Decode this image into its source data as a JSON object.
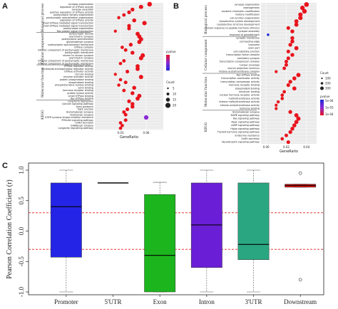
{
  "colors": {
    "panel_bg": "#ebebeb",
    "grid": "#ffffff",
    "dot_high": "#e8141d",
    "dot_mid": "#8a2ad6",
    "dot_low": "#1f2bd6",
    "threshold": "#e31a1c"
  },
  "chart_data": [
    {
      "panel": "A",
      "type": "scatter",
      "xlabel": "GeneRatio",
      "xticks": [
        "0.03",
        "0.06"
      ],
      "xlim": [
        0.0,
        0.08
      ],
      "legend": {
        "color_title": "pvalue",
        "size_title": "Count",
        "size_values": [
          "5",
          "10",
          "15",
          "20"
        ]
      },
      "groups": [
        {
          "name": "Biological process",
          "terms": [
            {
              "label": "synapse organization",
              "x": 0.064
            },
            {
              "label": "regulation of GTPase activity",
              "x": 0.054
            },
            {
              "label": "synapse assembly",
              "x": 0.044
            },
            {
              "label": "positive regulation of GTPase activity",
              "x": 0.04
            },
            {
              "label": "postsynaptic density organization",
              "x": 0.034
            },
            {
              "label": "postsynaptic specialization organization",
              "x": 0.028
            },
            {
              "label": "regulation of GTPase activity",
              "x": 0.046
            },
            {
              "label": "small GTPase mediated signal transduction",
              "x": 0.058
            },
            {
              "label": "small GTPase mediated signal transduction",
              "x": 0.04
            },
            {
              "label": "postsynapse organization",
              "x": 0.04
            },
            {
              "label": "Ras protein signal transduction",
              "x": 0.024
            }
          ]
        },
        {
          "name": "Cellular component",
          "terms": [
            {
              "label": "postsynaptic density",
              "x": 0.05
            },
            {
              "label": "asymmetric synapse",
              "x": 0.052
            },
            {
              "label": "postsynaptic specialization",
              "x": 0.054
            },
            {
              "label": "glutamatergic synapse",
              "x": 0.052
            },
            {
              "label": "postsynaptic specialization membrane",
              "x": 0.042
            },
            {
              "label": "GTPase complex",
              "x": 0.032
            },
            {
              "label": "intrinsic component of postsynaptic membrane",
              "x": 0.036
            },
            {
              "label": "postsynaptic membrane",
              "x": 0.044
            },
            {
              "label": "neuron to neuron synapse",
              "x": 0.056
            },
            {
              "label": "asymmetric synapse",
              "x": 0.054
            },
            {
              "label": "integral component of postsynaptic membrane",
              "x": 0.034
            },
            {
              "label": "integral component of postsynaptic membrane",
              "x": 0.03
            }
          ]
        },
        {
          "name": "Molecular function",
          "terms": [
            {
              "label": "GTPase regulator activity",
              "x": 0.05
            },
            {
              "label": "nucleoside-triphosphatase regulator activity",
              "x": 0.05
            },
            {
              "label": "GTPase activator activity",
              "x": 0.038
            },
            {
              "label": "vinculin binding",
              "x": 0.024
            },
            {
              "label": "enzyme activator activity",
              "x": 0.054
            },
            {
              "label": "protein phosphatase binding",
              "x": 0.03
            },
            {
              "label": "phosphatase binding",
              "x": 0.036
            },
            {
              "label": "phosphotyrosine residue binding",
              "x": 0.028
            },
            {
              "label": "actin binding",
              "x": 0.046
            },
            {
              "label": "hormone receptor binding",
              "x": 0.034
            },
            {
              "label": "protein kinase activity",
              "x": 0.044
            },
            {
              "label": "small GTPase binding",
              "x": 0.052
            },
            {
              "label": "Ras GTPase binding",
              "x": 0.05
            }
          ]
        },
        {
          "name": "KEGG",
          "terms": [
            {
              "label": "Long-term depression",
              "x": 0.04
            },
            {
              "label": "Calcium signaling pathway",
              "x": 0.044
            },
            {
              "label": "Axon guidance",
              "x": 0.044
            },
            {
              "label": "Tight junction",
              "x": 0.038
            },
            {
              "label": "Glutamatergic synapse",
              "x": 0.034
            },
            {
              "label": "Cholinergic synapse",
              "x": 0.036
            },
            {
              "label": "EGFR tyrosine kinase inhibitor resistance",
              "x": 0.06
            },
            {
              "label": "PI3K-Akt signaling pathway",
              "x": 0.036
            },
            {
              "label": "GnRH secretion",
              "x": 0.03
            },
            {
              "label": "GABAergic synapse",
              "x": 0.032
            },
            {
              "label": "Longevity regulating pathway",
              "x": 0.03
            }
          ]
        }
      ]
    },
    {
      "panel": "B",
      "type": "scatter",
      "xlabel": "GeneRatio",
      "xticks": [
        "0.00",
        "0.02",
        "0.04"
      ],
      "xlim": [
        -0.005,
        0.05
      ],
      "legend": {
        "size_title": "Count",
        "size_values": [
          "100",
          "200",
          "300"
        ],
        "color_title": "pvalue",
        "color_values": [
          "5e-04",
          "1e-03",
          "1e-04"
        ]
      },
      "groups": [
        {
          "name": "Biological process",
          "terms": [
            {
              "label": "synapse organization",
              "x": 0.04
            },
            {
              "label": "axonogenesis",
              "x": 0.036
            },
            {
              "label": "covalent chromatin modification",
              "x": 0.038
            },
            {
              "label": "histone modification",
              "x": 0.034
            },
            {
              "label": "cell junction organization",
              "x": 0.034
            },
            {
              "label": "reproductive system development",
              "x": 0.03
            },
            {
              "label": "reproductive structure development",
              "x": 0.03
            },
            {
              "label": "cellular response to peptide hormone stimulus",
              "x": 0.022
            },
            {
              "label": "synapse assembly",
              "x": 0.026
            },
            {
              "label": "response to gonadotropin",
              "x": 0.002
            }
          ]
        },
        {
          "name": "Cellular component",
          "terms": [
            {
              "label": "synaptic membrane",
              "x": 0.026
            },
            {
              "label": "cell leading edge",
              "x": 0.026
            },
            {
              "label": "lysosome",
              "x": 0.024
            },
            {
              "label": "axon part",
              "x": 0.03
            },
            {
              "label": "cell-substrate junction",
              "x": 0.022
            },
            {
              "label": "transcription factor complex",
              "x": 0.026
            },
            {
              "label": "excitatory synapse",
              "x": 0.022
            },
            {
              "label": "transcription corepressor complex",
              "x": 0.02
            },
            {
              "label": "nuclear envelope",
              "x": 0.02
            },
            {
              "label": "neuron projection terminus",
              "x": 0.018
            },
            {
              "label": "histone acetyltransferase complex",
              "x": 0.01
            }
          ]
        },
        {
          "name": "Molecular function",
          "terms": [
            {
              "label": "Ras GTPase binding",
              "x": 0.032
            },
            {
              "label": "transcription coactivator activity",
              "x": 0.028
            },
            {
              "label": "transcription corepressor activity",
              "x": 0.024
            },
            {
              "label": "hormone receptor binding",
              "x": 0.022
            },
            {
              "label": "phospholipid binding",
              "x": 0.028
            },
            {
              "label": "enhancer binding",
              "x": 0.018
            },
            {
              "label": "nuclear hormone receptor activity",
              "x": 0.016
            },
            {
              "label": "methyltransferase activity",
              "x": 0.016
            },
            {
              "label": "histone methyltransferase activity",
              "x": 0.012
            },
            {
              "label": "histone acetyltransferase activity",
              "x": 0.01
            },
            {
              "label": "hormone binding",
              "x": 0.01
            }
          ]
        },
        {
          "name": "KEGG",
          "terms": [
            {
              "label": "Glutamatergic synapse",
              "x": 0.024
            },
            {
              "label": "MAPK signaling pathway",
              "x": 0.03
            },
            {
              "label": "Ras signaling pathway",
              "x": 0.032
            },
            {
              "label": "Rap1 signaling pathway",
              "x": 0.03
            },
            {
              "label": "cAMP signaling pathway",
              "x": 0.028
            },
            {
              "label": "Hippo signaling pathway",
              "x": 0.026
            },
            {
              "label": "Thyroid hormone signaling pathway",
              "x": 0.024
            },
            {
              "label": "Endocrine resistance",
              "x": 0.02
            },
            {
              "label": "GnRH secretion",
              "x": 0.016
            },
            {
              "label": "Neurotrophin signaling pathway",
              "x": 0.022
            }
          ]
        }
      ]
    },
    {
      "panel": "C",
      "type": "box",
      "ylabel": "Pearson Correlation Coefficient (r)",
      "ylim": [
        -1.0,
        1.0
      ],
      "yticks": [
        -1.0,
        -0.5,
        0.0,
        0.5,
        1.0
      ],
      "threshold_lines": [
        0.3,
        -0.3
      ],
      "boxes": [
        {
          "category": "Promoter",
          "color": "#2424e6",
          "min": -1.0,
          "q1": -0.43,
          "median": 0.4,
          "q3": 0.79,
          "max": 1.0,
          "outliers": []
        },
        {
          "category": "5'UTR",
          "color": "#1a1a1a",
          "min": 0.79,
          "q1": 0.79,
          "median": 0.79,
          "q3": 0.79,
          "max": 0.79,
          "outliers": []
        },
        {
          "category": "Exon",
          "color": "#1db51d",
          "min": -1.0,
          "q1": -1.0,
          "median": -0.4,
          "q3": 0.6,
          "max": 0.8,
          "outliers": []
        },
        {
          "category": "Intron",
          "color": "#6a1fd6",
          "min": -1.0,
          "q1": -0.6,
          "median": 0.1,
          "q3": 0.79,
          "max": 1.0,
          "outliers": []
        },
        {
          "category": "3'UTR",
          "color": "#2aa781",
          "min": -1.0,
          "q1": -0.47,
          "median": -0.22,
          "q3": 0.79,
          "max": 1.0,
          "outliers": []
        },
        {
          "category": "Downstream",
          "color": "#d01010",
          "min": 0.72,
          "q1": 0.72,
          "median": 0.75,
          "q3": 0.77,
          "max": 0.77,
          "outliers": [
            0.95,
            -0.8
          ]
        }
      ]
    }
  ]
}
